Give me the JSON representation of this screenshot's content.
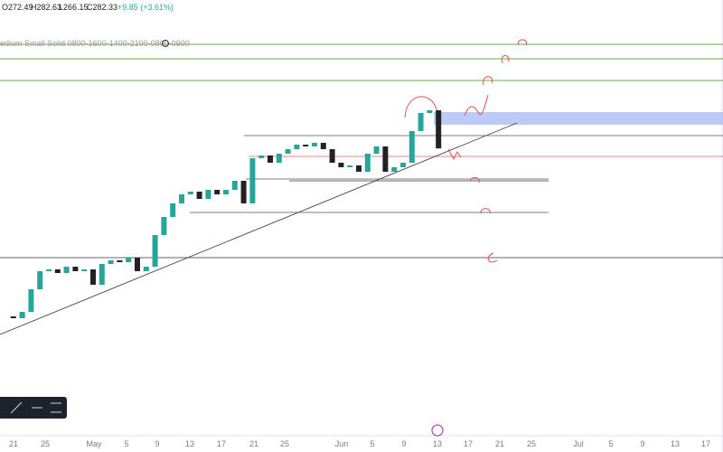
{
  "chart_data": {
    "type": "candlestick",
    "header": {
      "open": "O272.49",
      "high": "H282.63",
      "low": "L266.15",
      "close": "C282.33",
      "change": "+9.85 (+3.61%)"
    },
    "indicator_label": "edium Small Solid 0800-1600-1400-2100-0800-0900",
    "closes": [
      208,
      207.2,
      210,
      220,
      228,
      228.8,
      227.2,
      230,
      228,
      228.8,
      222,
      231.2,
      232.8,
      232,
      234,
      228,
      230,
      244,
      252,
      258,
      262,
      263.2,
      260,
      264,
      262,
      264,
      268,
      258,
      278,
      279.2,
      276,
      280,
      282,
      284,
      283.2,
      284.8,
      282,
      276,
      274,
      274.8,
      272,
      280,
      283.2,
      272,
      274,
      276,
      290,
      298,
      299.2,
      282.33
    ],
    "ylim": [
      156,
      348
    ],
    "up_color": "#26a69a",
    "down_color": "#222222",
    "x_labels": [
      "21",
      "25",
      "May",
      "5",
      "9",
      "13",
      "17",
      "21",
      "25",
      "Jun",
      "5",
      "9",
      "13",
      "17",
      "21",
      "25",
      "Jul",
      "5",
      "9",
      "13",
      "17"
    ]
  }
}
